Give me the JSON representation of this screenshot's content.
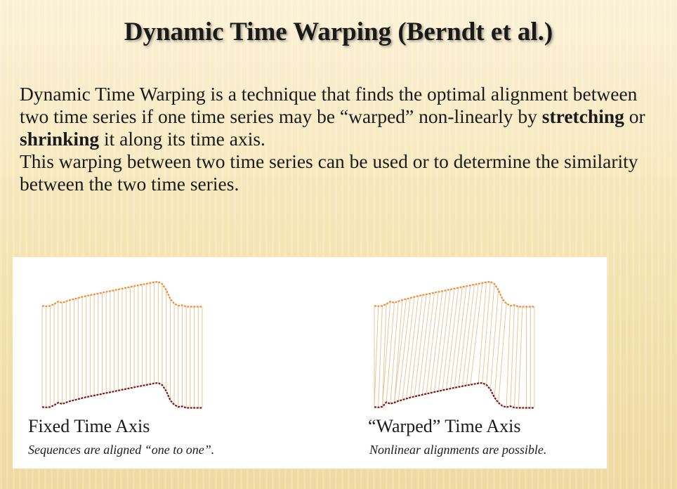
{
  "slide": {
    "title": "Dynamic Time Warping (Berndt et al.)",
    "p1": {
      "pre": "Dynamic Time Warping is a technique that finds the optimal alignment between two time series if one time series may be “warped” non-linearly by ",
      "bold1": "stretching",
      "mid": " or ",
      "bold2": "shrinking",
      "post": " it along its time axis."
    },
    "p2": "This warping between two time series can be used or to determine the similarity between the two time series."
  },
  "figures": [
    {
      "title": "Fixed Time Axis",
      "caption": "Sequences are aligned “one to one”."
    },
    {
      "title": "“Warped” Time Axis",
      "caption": "Nonlinear alignments are possible."
    }
  ],
  "colors": {
    "upper_series": "#ef8d3a",
    "lower_series": "#7d1a14",
    "alignment_lines": "#e6c79a",
    "panel_background": "#ffffff"
  }
}
